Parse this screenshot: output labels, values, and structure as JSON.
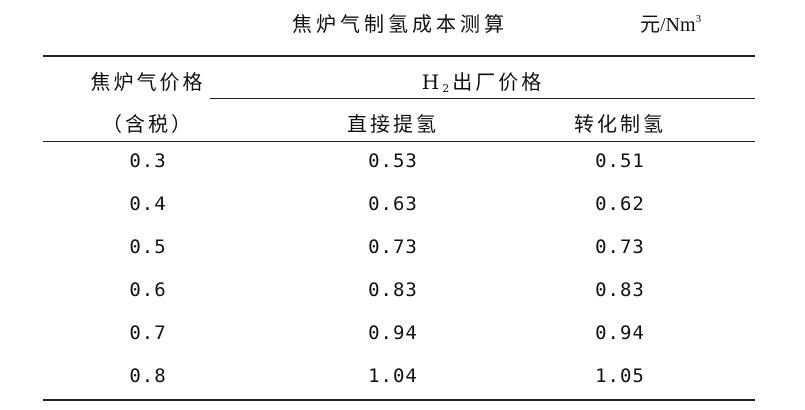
{
  "title": "焦炉气制氢成本测算",
  "unit": {
    "base": "元/Nm",
    "superscript": "3"
  },
  "header": {
    "col1_line1": "焦炉气价格",
    "col1_line2": "（含税）",
    "group": {
      "prefix": "H",
      "subscript": "2",
      "suffix": "出厂价格"
    },
    "col2": "直接提氢",
    "col3": "转化制氢"
  },
  "rows": [
    [
      "0.3",
      "0.53",
      "0.51"
    ],
    [
      "0.4",
      "0.63",
      "0.62"
    ],
    [
      "0.5",
      "0.73",
      "0.73"
    ],
    [
      "0.6",
      "0.83",
      "0.83"
    ],
    [
      "0.7",
      "0.94",
      "0.94"
    ],
    [
      "0.8",
      "1.04",
      "1.05"
    ]
  ]
}
